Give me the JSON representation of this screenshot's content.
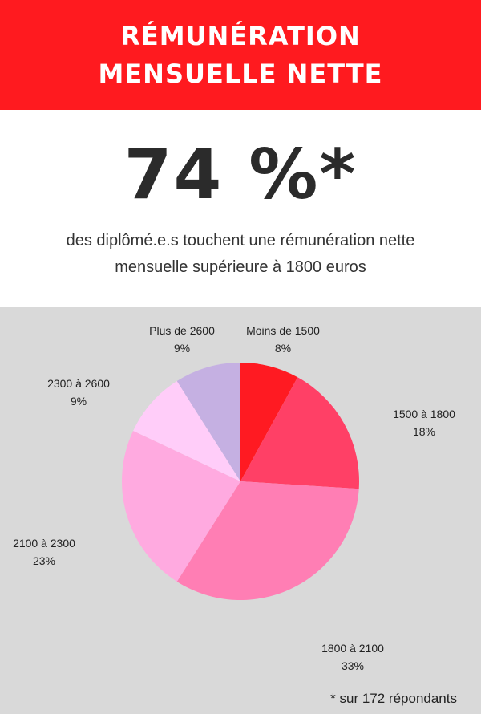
{
  "header": {
    "title_line1": "RÉMUNÉRATION",
    "title_line2": "MENSUELLE NETTE"
  },
  "highlight": {
    "value": "74 %*",
    "description_line1": "des diplômé.e.s touchent une rémunération nette",
    "description_line2": "mensuelle supérieure à 1800 euros"
  },
  "footnote": "* sur 172 répondants",
  "colors": {
    "header_bg": "#ff1a1f",
    "chart_bg": "#d9d9d9"
  },
  "chart_data": {
    "type": "pie",
    "start_angle": "top",
    "direction": "clockwise",
    "slices": [
      {
        "label": "Moins de 1500",
        "value": 8,
        "value_label": "8%",
        "color": "#ff1a22"
      },
      {
        "label": "1500 à 1800",
        "value": 18,
        "value_label": "18%",
        "color": "#ff4066"
      },
      {
        "label": "1800 à 2100",
        "value": 33,
        "value_label": "33%",
        "color": "#ff7eb4"
      },
      {
        "label": "2100 à 2300",
        "value": 23,
        "value_label": "23%",
        "color": "#ffaae0"
      },
      {
        "label": "2300 à 2600",
        "value": 9,
        "value_label": "9%",
        "color": "#ffcdf9"
      },
      {
        "label": "Plus de 2600",
        "value": 9,
        "value_label": "9%",
        "color": "#c5b0e2"
      }
    ]
  }
}
